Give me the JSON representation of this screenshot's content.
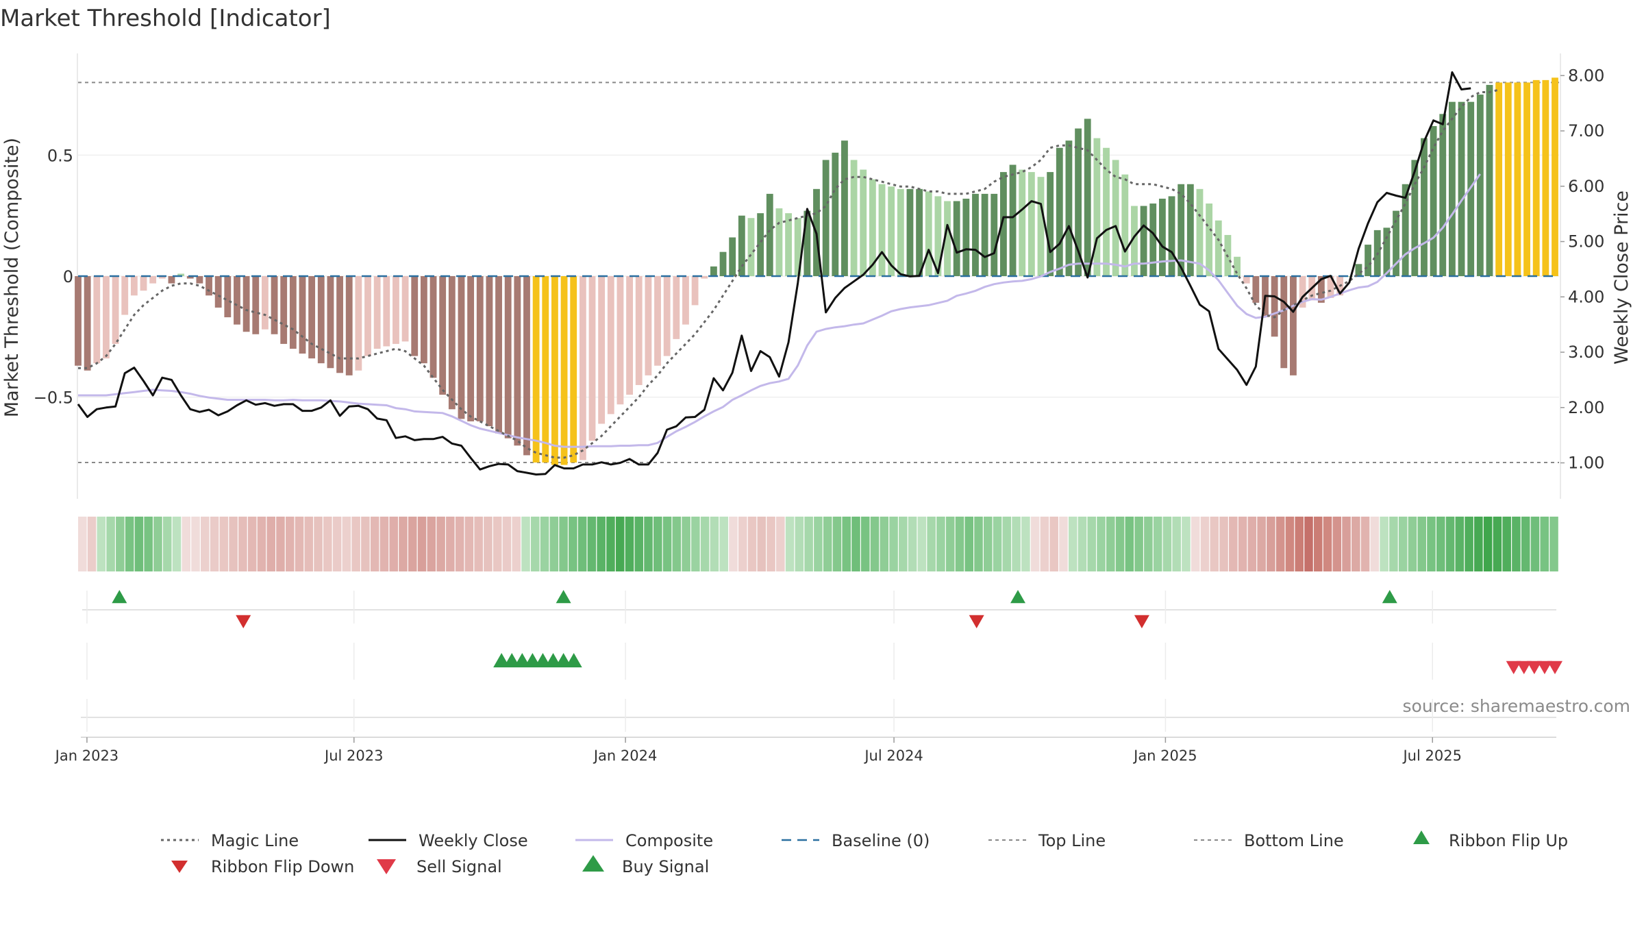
{
  "chart_data": {
    "type": "bar",
    "title": "Market Threshold [Indicator]",
    "ylabel_left": "Market Threshold (Composite)",
    "ylabel_right": "Weekly Close Price",
    "source": "source: sharemaestro.com",
    "left_axis": {
      "ylim": [
        -0.92,
        0.92
      ],
      "ticks": [
        -0.5,
        0,
        0.5
      ],
      "tick_labels": [
        "−0.5",
        "0",
        "0.5"
      ]
    },
    "right_axis": {
      "ylim": [
        0.35,
        8.4
      ],
      "ticks": [
        1,
        2,
        3,
        4,
        5,
        6,
        7,
        8
      ],
      "tick_labels": [
        "1.00",
        "2.00",
        "3.00",
        "4.00",
        "5.00",
        "6.00",
        "7.00",
        "8.00"
      ]
    },
    "x_axis": {
      "start": "2022-12-26",
      "end": "2025-09-22",
      "ticks": [
        {
          "date": "2023-01-01",
          "label": "Jan 2023"
        },
        {
          "date": "2023-07-01",
          "label": "Jul 2023"
        },
        {
          "date": "2024-01-01",
          "label": "Jan 2024"
        },
        {
          "date": "2024-07-01",
          "label": "Jul 2024"
        },
        {
          "date": "2025-01-01",
          "label": "Jan 2025"
        },
        {
          "date": "2025-07-01",
          "label": "Jul 2025"
        }
      ]
    },
    "top_line": 0.8,
    "bottom_line": -0.77,
    "composite_bars": [
      -0.37,
      -0.39,
      -0.36,
      -0.34,
      -0.28,
      -0.16,
      -0.08,
      -0.06,
      -0.03,
      -0.01,
      -0.03,
      0.01,
      -0.01,
      -0.03,
      -0.08,
      -0.13,
      -0.17,
      -0.2,
      -0.23,
      -0.24,
      -0.22,
      -0.24,
      -0.28,
      -0.3,
      -0.32,
      -0.34,
      -0.36,
      -0.38,
      -0.4,
      -0.41,
      -0.39,
      -0.33,
      -0.3,
      -0.29,
      -0.28,
      -0.27,
      -0.33,
      -0.36,
      -0.42,
      -0.49,
      -0.55,
      -0.59,
      -0.6,
      -0.6,
      -0.62,
      -0.65,
      -0.67,
      -0.7,
      -0.74,
      -0.77,
      -0.77,
      -0.78,
      -0.78,
      -0.77,
      -0.76,
      -0.68,
      -0.61,
      -0.57,
      -0.53,
      -0.49,
      -0.45,
      -0.41,
      -0.37,
      -0.33,
      -0.26,
      -0.2,
      -0.12,
      -0.01,
      0.04,
      0.1,
      0.16,
      0.25,
      0.24,
      0.26,
      0.34,
      0.28,
      0.26,
      0.24,
      0.27,
      0.36,
      0.48,
      0.51,
      0.56,
      0.48,
      0.44,
      0.4,
      0.38,
      0.37,
      0.36,
      0.36,
      0.36,
      0.35,
      0.33,
      0.31,
      0.31,
      0.32,
      0.34,
      0.34,
      0.34,
      0.43,
      0.46,
      0.44,
      0.43,
      0.41,
      0.43,
      0.53,
      0.56,
      0.61,
      0.65,
      0.57,
      0.53,
      0.48,
      0.42,
      0.29,
      0.29,
      0.3,
      0.32,
      0.33,
      0.38,
      0.38,
      0.36,
      0.3,
      0.23,
      0.17,
      0.08,
      -0.03,
      -0.11,
      -0.17,
      -0.25,
      -0.38,
      -0.41,
      -0.13,
      -0.1,
      -0.11,
      -0.09,
      -0.08,
      0,
      0.05,
      0.13,
      0.19,
      0.2,
      0.27,
      0.38,
      0.48,
      0.57,
      0.62,
      0.67,
      0.72,
      0.72,
      0.72,
      0.75,
      0.79,
      0.8,
      0.8,
      0.8,
      0.8,
      0.81,
      0.81,
      0.82
    ],
    "bar_colors": {
      "neg_dark": "#a77a72",
      "neg_light": "#e9c2bd",
      "pos_dark": "#608f5f",
      "pos_light": "#abd5a5",
      "extreme": "#f5c21a"
    },
    "weekly_close": [
      2.06,
      1.83,
      1.97,
      2,
      2.02,
      2.62,
      2.72,
      2.48,
      2.22,
      2.54,
      2.5,
      2.22,
      1.97,
      1.92,
      1.96,
      1.86,
      1.93,
      2.04,
      2.13,
      2.05,
      2.08,
      2.03,
      2.06,
      2.06,
      1.94,
      1.94,
      2,
      2.13,
      1.85,
      2.02,
      2.03,
      1.97,
      1.8,
      1.77,
      1.45,
      1.48,
      1.41,
      1.43,
      1.43,
      1.47,
      1.35,
      1.31,
      1.09,
      0.88,
      0.94,
      0.98,
      0.97,
      0.85,
      0.82,
      0.79,
      0.8,
      0.96,
      0.9,
      0.9,
      0.97,
      0.97,
      1.01,
      0.97,
      1,
      1.07,
      0.97,
      0.97,
      1.18,
      1.6,
      1.66,
      1.82,
      1.83,
      1.96,
      2.53,
      2.31,
      2.63,
      3.3,
      2.66,
      3.02,
      2.91,
      2.56,
      3.18,
      4.25,
      5.59,
      5.14,
      3.72,
      3.98,
      4.16,
      4.28,
      4.4,
      4.58,
      4.81,
      4.57,
      4.41,
      4.37,
      4.38,
      4.85,
      4.43,
      5.3,
      4.8,
      4.86,
      4.85,
      4.72,
      4.79,
      5.44,
      5.44,
      5.58,
      5.73,
      5.68,
      4.81,
      4.96,
      5.28,
      4.83,
      4.35,
      5.06,
      5.21,
      5.28,
      4.82,
      5.09,
      5.29,
      5.15,
      4.91,
      4.81,
      4.53,
      4.2,
      3.86,
      3.74,
      3.06,
      2.87,
      2.68,
      2.41,
      2.74,
      4.02,
      4.01,
      3.91,
      3.73,
      4,
      4.16,
      4.32,
      4.38,
      4.06,
      4.26,
      4.87,
      5.33,
      5.71,
      5.88,
      5.83,
      5.79,
      6.27,
      6.81,
      7.19,
      7.12,
      8.06,
      7.75,
      7.77
    ],
    "composite_line": [
      2.22,
      2.22,
      2.22,
      2.22,
      2.24,
      2.26,
      2.28,
      2.3,
      2.32,
      2.31,
      2.3,
      2.28,
      2.25,
      2.21,
      2.18,
      2.16,
      2.14,
      2.14,
      2.14,
      2.14,
      2.14,
      2.13,
      2.13,
      2.14,
      2.13,
      2.13,
      2.13,
      2.12,
      2.11,
      2.09,
      2.07,
      2.06,
      2.05,
      2.04,
      1.99,
      1.97,
      1.93,
      1.92,
      1.91,
      1.9,
      1.84,
      1.76,
      1.68,
      1.62,
      1.58,
      1.54,
      1.5,
      1.46,
      1.43,
      1.4,
      1.36,
      1.31,
      1.29,
      1.29,
      1.29,
      1.3,
      1.3,
      1.3,
      1.31,
      1.31,
      1.32,
      1.32,
      1.36,
      1.47,
      1.57,
      1.65,
      1.74,
      1.84,
      1.93,
      2.01,
      2.14,
      2.22,
      2.31,
      2.39,
      2.44,
      2.47,
      2.52,
      2.76,
      3.12,
      3.37,
      3.42,
      3.45,
      3.47,
      3.5,
      3.52,
      3.59,
      3.66,
      3.74,
      3.78,
      3.81,
      3.83,
      3.85,
      3.89,
      3.93,
      4.02,
      4.06,
      4.11,
      4.18,
      4.23,
      4.26,
      4.28,
      4.29,
      4.32,
      4.37,
      4.45,
      4.51,
      4.58,
      4.6,
      4.6,
      4.6,
      4.6,
      4.58,
      4.55,
      4.6,
      4.6,
      4.62,
      4.64,
      4.65,
      4.66,
      4.63,
      4.6,
      4.48,
      4.3,
      4.07,
      3.84,
      3.69,
      3.62,
      3.64,
      3.7,
      3.76,
      3.84,
      3.91,
      3.96,
      3.95,
      4,
      4.06,
      4.12,
      4.17,
      4.19,
      4.27,
      4.43,
      4.6,
      4.77,
      4.88,
      4.97,
      5.07,
      5.25,
      5.49,
      5.74,
      5.98,
      6.22
    ],
    "magic_line": [
      -0.38,
      -0.38,
      -0.36,
      -0.33,
      -0.28,
      -0.22,
      -0.16,
      -0.12,
      -0.09,
      -0.06,
      -0.04,
      -0.03,
      -0.03,
      -0.04,
      -0.06,
      -0.08,
      -0.1,
      -0.12,
      -0.14,
      -0.15,
      -0.16,
      -0.18,
      -0.2,
      -0.22,
      -0.25,
      -0.28,
      -0.3,
      -0.32,
      -0.34,
      -0.34,
      -0.34,
      -0.33,
      -0.32,
      -0.31,
      -0.3,
      -0.31,
      -0.34,
      -0.37,
      -0.42,
      -0.47,
      -0.51,
      -0.55,
      -0.58,
      -0.6,
      -0.62,
      -0.64,
      -0.66,
      -0.68,
      -0.71,
      -0.73,
      -0.74,
      -0.75,
      -0.75,
      -0.74,
      -0.72,
      -0.69,
      -0.66,
      -0.62,
      -0.58,
      -0.54,
      -0.5,
      -0.45,
      -0.41,
      -0.36,
      -0.32,
      -0.28,
      -0.24,
      -0.19,
      -0.14,
      -0.08,
      -0.02,
      0.04,
      0.09,
      0.14,
      0.19,
      0.22,
      0.23,
      0.24,
      0.25,
      0.26,
      0.29,
      0.36,
      0.4,
      0.41,
      0.41,
      0.4,
      0.39,
      0.38,
      0.37,
      0.37,
      0.36,
      0.35,
      0.35,
      0.34,
      0.34,
      0.34,
      0.35,
      0.36,
      0.39,
      0.41,
      0.42,
      0.43,
      0.45,
      0.48,
      0.53,
      0.54,
      0.54,
      0.53,
      0.52,
      0.48,
      0.44,
      0.41,
      0.4,
      0.38,
      0.38,
      0.38,
      0.37,
      0.36,
      0.34,
      0.3,
      0.25,
      0.2,
      0.15,
      0.08,
      0.01,
      -0.05,
      -0.12,
      -0.16,
      -0.17,
      -0.14,
      -0.12,
      -0.1,
      -0.08,
      -0.07,
      -0.06,
      -0.04,
      -0.02,
      0.01,
      0.04,
      0.09,
      0.16,
      0.23,
      0.3,
      0.38,
      0.45,
      0.53,
      0.6,
      0.65,
      0.7,
      0.74,
      0.76,
      0.76,
      0.77
    ],
    "ribbon_colors": [
      "#f0dcda",
      "#ebcdca",
      "#bde2c0",
      "#a6d8ab",
      "#8fcd96",
      "#78c382",
      "#6fbe7a",
      "#78c382",
      "#8fcd96",
      "#a6d8ab",
      "#bde2c0",
      "#f0dcda",
      "#f0dcda",
      "#ecd0cd",
      "#eacbc8",
      "#e9c7c3",
      "#e6c2be",
      "#e5bdb9",
      "#e3b8b4",
      "#e1b3af",
      "#dfaeaa",
      "#dfaeaa",
      "#e1b3af",
      "#e3b8b4",
      "#e5bdb9",
      "#e6c2be",
      "#e9c7c3",
      "#eacbc8",
      "#ecd0cd",
      "#e9c7c3",
      "#e6c2be",
      "#e3b8b4",
      "#e1b3af",
      "#dfaeaa",
      "#dca9a4",
      "#daa49f",
      "#d89f9a",
      "#daa49f",
      "#dca9a4",
      "#dfaeaa",
      "#e1b3af",
      "#e3b8b4",
      "#e5bdb9",
      "#e6c2be",
      "#e9c7c3",
      "#eacbc8",
      "#ecd0cd",
      "#bde2c0",
      "#a6d8ab",
      "#9ad3a1",
      "#8fcd96",
      "#84c88c",
      "#78c382",
      "#6fbe7a",
      "#64b870",
      "#5ab366",
      "#50ae5c",
      "#47a953",
      "#50ae5c",
      "#5ab366",
      "#64b870",
      "#6fbe7a",
      "#78c382",
      "#84c88c",
      "#8fcd96",
      "#9ad3a1",
      "#a6d8ab",
      "#b2ddb6",
      "#bde2c0",
      "#f0dcda",
      "#ecd0cd",
      "#e9c7c3",
      "#e6c2be",
      "#e9c7c3",
      "#ecd0cd",
      "#bde2c0",
      "#b2ddb6",
      "#a6d8ab",
      "#9ad3a1",
      "#8fcd96",
      "#84c88c",
      "#78c382",
      "#6fbe7a",
      "#78c382",
      "#84c88c",
      "#8fcd96",
      "#9ad3a1",
      "#a6d8ab",
      "#b2ddb6",
      "#bde2c0",
      "#a6d8ab",
      "#9ad3a1",
      "#8fcd96",
      "#84c88c",
      "#78c382",
      "#84c88c",
      "#8fcd96",
      "#9ad3a1",
      "#a6d8ab",
      "#b2ddb6",
      "#bde2c0",
      "#f0dcda",
      "#ecd0cd",
      "#e9c7c3",
      "#f0dcda",
      "#bde2c0",
      "#b2ddb6",
      "#a6d8ab",
      "#9ad3a1",
      "#8fcd96",
      "#84c88c",
      "#78c382",
      "#84c88c",
      "#8fcd96",
      "#9ad3a1",
      "#a6d8ab",
      "#b2ddb6",
      "#bde2c0",
      "#f0dcda",
      "#ecd0cd",
      "#e9c7c3",
      "#e6c2be",
      "#e3b8b4",
      "#e1b3af",
      "#dfaeaa",
      "#dca9a4",
      "#d89f9a",
      "#d4938d",
      "#d08880",
      "#cb7d75",
      "#c5706a",
      "#cb7d75",
      "#d08880",
      "#d4938d",
      "#d89f9a",
      "#dca9a4",
      "#e1b3af",
      "#f0dcda",
      "#bde2c0",
      "#a6d8ab",
      "#9ad3a1",
      "#8fcd96",
      "#84c88c",
      "#78c382",
      "#6fbe7a",
      "#64b870",
      "#5ab366",
      "#50ae5c",
      "#47a953",
      "#3fa64c",
      "#47a953",
      "#50ae5c",
      "#5ab366",
      "#64b870",
      "#6fbe7a",
      "#78c382",
      "#84c88c"
    ],
    "markers": {
      "ribbon_flip_up": [
        "2023-01-23",
        "2023-11-20",
        "2024-09-23",
        "2025-06-02"
      ],
      "ribbon_flip_down": [
        "2023-04-17",
        "2024-08-26",
        "2024-12-16"
      ],
      "buy_signal": [
        "2023-10-09",
        "2023-10-16",
        "2023-10-23",
        "2023-10-30",
        "2023-11-06",
        "2023-11-13",
        "2023-11-20",
        "2023-11-27"
      ],
      "sell_signal": [
        "2025-08-25",
        "2025-09-01",
        "2025-09-08",
        "2025-09-15",
        "2025-09-22"
      ]
    },
    "colors": {
      "weekly_close": "#111111",
      "composite": "#c3b8ea",
      "magic_line": "#666666",
      "baseline": "#2a6fa0",
      "ref_lines": "#888888",
      "flip_up": "#2e9b47",
      "flip_down": "#d22f2f",
      "buy": "#2e9b47",
      "sell": "#e03a48"
    },
    "legend": {
      "placement": "bottom",
      "entries": [
        {
          "key": "magic",
          "label": "Magic Line"
        },
        {
          "key": "close",
          "label": "Weekly Close"
        },
        {
          "key": "composite",
          "label": "Composite"
        },
        {
          "key": "baseline",
          "label": "Baseline (0)"
        },
        {
          "key": "top",
          "label": "Top Line"
        },
        {
          "key": "bottom",
          "label": "Bottom Line"
        },
        {
          "key": "flipup",
          "label": "Ribbon Flip Up"
        },
        {
          "key": "flipdown",
          "label": "Ribbon Flip Down"
        },
        {
          "key": "sell",
          "label": "Sell Signal"
        },
        {
          "key": "buy",
          "label": "Buy Signal"
        }
      ]
    }
  }
}
